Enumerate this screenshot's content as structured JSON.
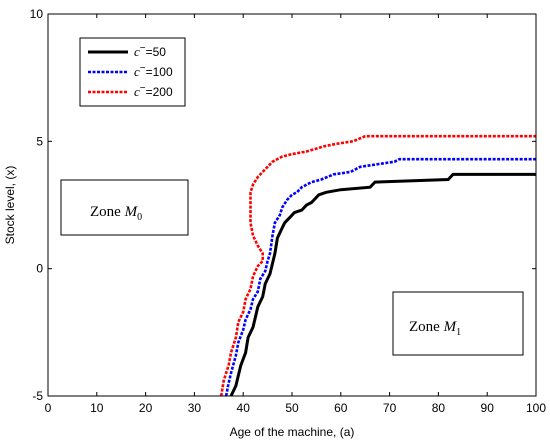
{
  "chart_data": {
    "type": "line",
    "title": "",
    "xlabel": "Age of the machine, (a)",
    "ylabel": "Stock level, (x)",
    "xlim": [
      0,
      100
    ],
    "ylim": [
      -5,
      10
    ],
    "xticks": [
      0,
      10,
      20,
      30,
      40,
      50,
      60,
      70,
      80,
      90,
      100
    ],
    "yticks": [
      -5,
      0,
      5,
      10
    ],
    "grid": false,
    "legend_position": "top-left",
    "series": [
      {
        "name": "=50",
        "legend_prefix": "c",
        "legend_superscript": "−",
        "color": "#000000",
        "style": "solid",
        "points": [
          [
            37.5,
            -5
          ],
          [
            38.5,
            -4.6
          ],
          [
            39,
            -4.2
          ],
          [
            39.5,
            -3.8
          ],
          [
            40.5,
            -3.3
          ],
          [
            41,
            -2.7
          ],
          [
            42,
            -2.3
          ],
          [
            42.5,
            -1.9
          ],
          [
            43,
            -1.5
          ],
          [
            44,
            -1.1
          ],
          [
            44.5,
            -0.6
          ],
          [
            45.5,
            -0.2
          ],
          [
            46.5,
            0.6
          ],
          [
            47,
            1.2
          ],
          [
            47.5,
            1.4
          ],
          [
            48,
            1.6
          ],
          [
            48.5,
            1.8
          ],
          [
            49.5,
            2.0
          ],
          [
            50.5,
            2.2
          ],
          [
            52,
            2.3
          ],
          [
            53,
            2.5
          ],
          [
            54,
            2.6
          ],
          [
            55.5,
            2.9
          ],
          [
            57,
            3.0
          ],
          [
            60,
            3.1
          ],
          [
            66,
            3.2
          ],
          [
            67,
            3.4
          ],
          [
            82,
            3.5
          ],
          [
            83,
            3.7
          ],
          [
            100,
            3.7
          ]
        ]
      },
      {
        "name": "=100",
        "legend_prefix": "c",
        "legend_superscript": "−",
        "color": "#0000ff",
        "style": "dashed",
        "points": [
          [
            36.5,
            -5
          ],
          [
            37,
            -4.5
          ],
          [
            37.5,
            -4.1
          ],
          [
            38.5,
            -3.4
          ],
          [
            39,
            -2.9
          ],
          [
            40,
            -2.4
          ],
          [
            40.5,
            -2.0
          ],
          [
            41.5,
            -1.6
          ],
          [
            42,
            -1.2
          ],
          [
            43,
            -0.9
          ],
          [
            43.5,
            -0.4
          ],
          [
            44.5,
            -0.1
          ],
          [
            45,
            0.3
          ],
          [
            45.5,
            0.6
          ],
          [
            46,
            1.3
          ],
          [
            46.5,
            1.8
          ],
          [
            47.5,
            2.1
          ],
          [
            48,
            2.4
          ],
          [
            49,
            2.7
          ],
          [
            50,
            2.9
          ],
          [
            51,
            3.0
          ],
          [
            52,
            3.2
          ],
          [
            54,
            3.4
          ],
          [
            56,
            3.5
          ],
          [
            58.5,
            3.7
          ],
          [
            62,
            3.8
          ],
          [
            64,
            4.0
          ],
          [
            71,
            4.2
          ],
          [
            72,
            4.3
          ],
          [
            100,
            4.3
          ]
        ]
      },
      {
        "name": "=200",
        "legend_prefix": "c",
        "legend_superscript": "−",
        "color": "#ff0000",
        "style": "dashed",
        "points": [
          [
            35.5,
            -5
          ],
          [
            36,
            -4.4
          ],
          [
            37,
            -3.8
          ],
          [
            37.5,
            -3.3
          ],
          [
            38.5,
            -2.7
          ],
          [
            39,
            -2.1
          ],
          [
            40,
            -1.7
          ],
          [
            40.5,
            -1.2
          ],
          [
            41.5,
            -0.8
          ],
          [
            42,
            -0.3
          ],
          [
            43,
            0.1
          ],
          [
            44,
            0.3
          ],
          [
            44,
            0.6
          ],
          [
            43,
            0.9
          ],
          [
            42,
            1.3
          ],
          [
            41.5,
            1.8
          ],
          [
            41.5,
            2.4
          ],
          [
            41.5,
            3.0
          ],
          [
            42,
            3.3
          ],
          [
            43,
            3.6
          ],
          [
            44,
            3.8
          ],
          [
            45,
            4.0
          ],
          [
            46,
            4.2
          ],
          [
            48,
            4.4
          ],
          [
            50,
            4.5
          ],
          [
            53,
            4.6
          ],
          [
            56.5,
            4.8
          ],
          [
            59,
            4.9
          ],
          [
            62.5,
            5.0
          ],
          [
            65,
            5.2
          ],
          [
            100,
            5.2
          ]
        ]
      }
    ],
    "annotations": [
      {
        "label": "Zone ",
        "symbol": "M",
        "subscript": "0"
      },
      {
        "label": "Zone ",
        "symbol": "M",
        "subscript": "1"
      }
    ]
  }
}
